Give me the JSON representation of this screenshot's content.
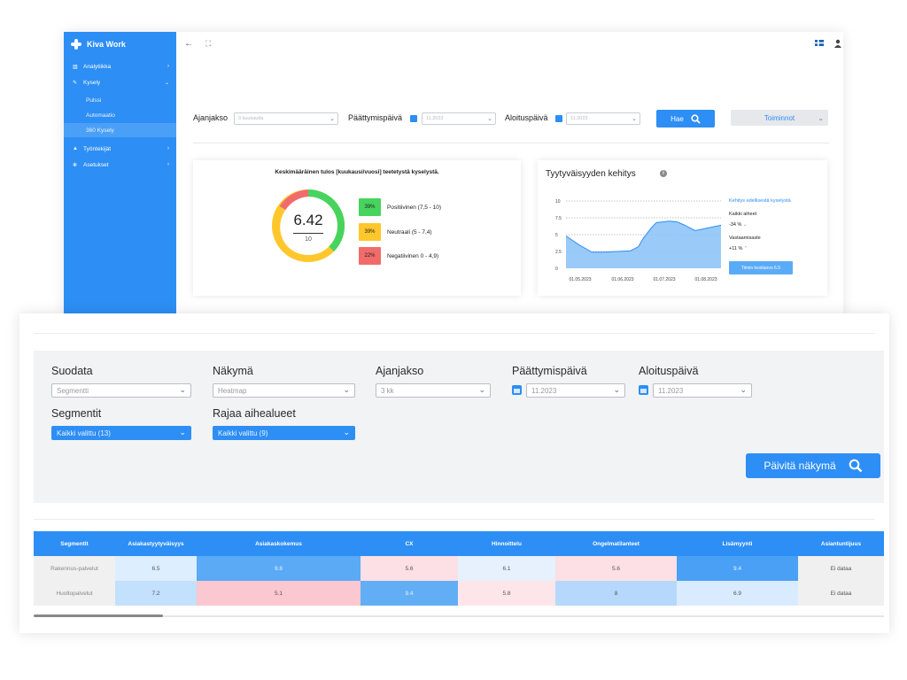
{
  "app": {
    "name": "Kiva Work"
  },
  "colors": {
    "accent": "#2d8ef5",
    "positive": "#46d45e",
    "neutral": "#ffc72c",
    "negative": "#f26b6b",
    "chart_fill": "#8ec4f7"
  },
  "sidebar": {
    "items": [
      {
        "label": "Analytiikka",
        "icon": "chart-icon"
      },
      {
        "label": "Kysely",
        "icon": "pen-icon"
      },
      {
        "label": "Pulssi"
      },
      {
        "label": "Automaatio"
      },
      {
        "label": "360 Kysely"
      },
      {
        "label": "Työntekijät",
        "icon": "person-icon"
      },
      {
        "label": "Asetukset",
        "icon": "gear-icon"
      }
    ]
  },
  "topbar": {
    "back": "←",
    "expand": "⛶"
  },
  "back_filters": {
    "ajanjakso_label": "Ajanjakso",
    "ajanjakso_value": "3 kuukautta",
    "paattymis_label": "Päättymispäivä",
    "paattymis_value": "11.2023",
    "aloitus_label": "Aloituspäivä",
    "aloitus_value": "11.2023",
    "search_label": "Hae",
    "actions_label": "Toiminnot"
  },
  "donut_card": {
    "title": "Keskimääräinen tulos [kuukausi/vuosi] teetetystä kyselystä.",
    "value": "6.42",
    "denominator": "10",
    "legend": [
      {
        "pct": "39%",
        "label": "Positiivinen (7,5 - 10)"
      },
      {
        "pct": "39%",
        "label": "Neutraali  (5 - 7,4)"
      },
      {
        "pct": "22%",
        "label": "Negatiivinen 0 - 4,9)"
      }
    ]
  },
  "trend_card": {
    "title": "Tyytyväisyyden kehitys",
    "info": "i",
    "side_title": "Kehitys edellisestä kyselystä",
    "topic_label": "Kaikki aiheet",
    "topic_change": "-34 %",
    "response_label": "Vastaamisaste",
    "response_change": "+11 %",
    "avg_button": "Tiimin keskiarvo 6.5"
  },
  "chart_data": {
    "type": "area",
    "y_ticks": [
      "10",
      "7.5",
      "5",
      "2.5",
      "0"
    ],
    "x_labels": [
      "01.05.2023",
      "01.06.2023",
      "01.07.2023",
      "01.08.2023"
    ],
    "x": [
      0,
      0.5,
      1,
      1.5,
      2,
      2.5,
      2.8,
      3,
      3.3,
      3.5,
      4,
      4.3,
      4.6,
      5,
      5.5,
      6
    ],
    "y": [
      4.8,
      3.5,
      2.4,
      2.4,
      2.5,
      2.6,
      3.2,
      4.5,
      6.0,
      6.8,
      7.0,
      6.9,
      6.4,
      5.6,
      6.0,
      6.4
    ],
    "ylim": [
      0,
      10
    ],
    "reference_lines": [
      10,
      7.5,
      5,
      2.5
    ]
  },
  "front_filters": {
    "suodata_label": "Suodata",
    "suodata_value": "Segmentti",
    "nakyma_label": "Näkymä",
    "nakyma_value": "Heatmap",
    "ajanjakso_label": "Ajanjakso",
    "ajanjakso_value": "3 kk",
    "paattymis_label": "Päättymispäivä",
    "paattymis_value": "11.2023",
    "aloitus_label": "Aloituspäivä",
    "aloitus_value": "11.2023",
    "segmentit_label": "Segmentit",
    "segmentit_value": "Kaikki valittu (13)",
    "rajaa_label": "Rajaa aihealueet",
    "rajaa_value": "Kaikki valittu (9)",
    "update_label": "Päivitä näkymä"
  },
  "heatmap": {
    "headers": [
      "Segmentit",
      "Asiakastyytyväisyys",
      "Asiakaskokemus",
      "CX",
      "Hinnoittelu",
      "Ongelmatilanteet",
      "Lisämyynti",
      "Asiantuntijuus"
    ],
    "rows": [
      {
        "name": "Rakennus-palvelut",
        "cells": [
          "6.5",
          "9.8",
          "5.6",
          "6.1",
          "5.6",
          "9.4",
          "Ei dataa"
        ],
        "colors": [
          "#ddeeff",
          "#5aaaf5",
          "#fde0e5",
          "#e6f1fd",
          "#fde0e5",
          "#4aa0f5",
          "#f0f0f0"
        ]
      },
      {
        "name": "Huoltopalvelut",
        "cells": [
          "7.2",
          "5.1",
          "9.4",
          "5.8",
          "8",
          "6.9",
          "Ei dataa"
        ],
        "colors": [
          "#c3e0fd",
          "#fbc7d0",
          "#62aef5",
          "#fde6ea",
          "#b6d8fc",
          "#d9ebfe",
          "#f0f0f0"
        ]
      }
    ]
  }
}
